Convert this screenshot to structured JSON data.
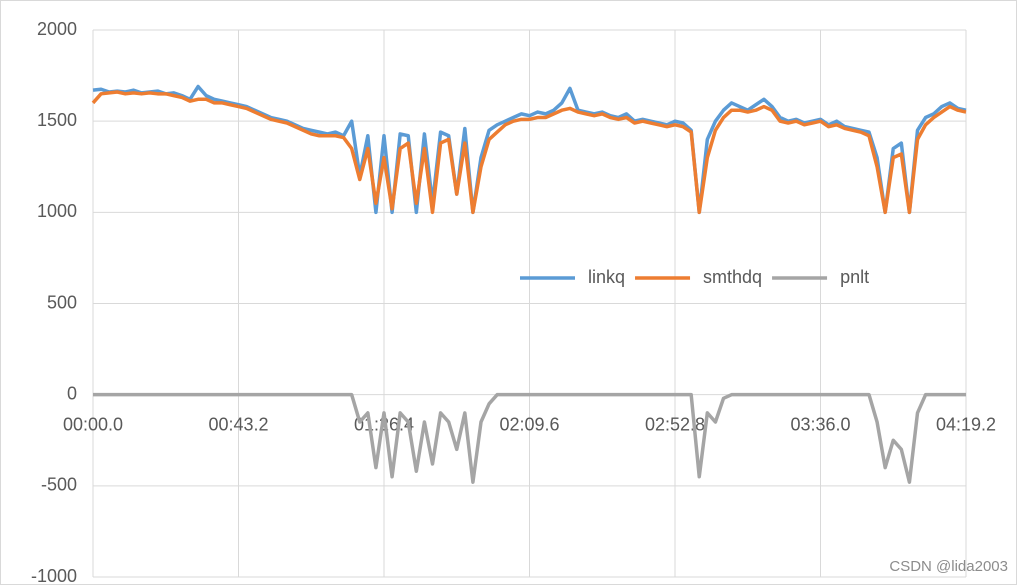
{
  "chart_data": {
    "type": "line",
    "x": [
      0,
      2.4,
      4.8,
      7.2,
      9.6,
      12,
      14.4,
      16.8,
      19.2,
      21.6,
      24,
      26.4,
      28.8,
      31.2,
      33.6,
      36,
      38.4,
      40.8,
      43.2,
      45.6,
      48,
      50.4,
      52.8,
      55.2,
      57.6,
      60,
      62.4,
      64.8,
      67.2,
      69.6,
      72,
      74.4,
      76.8,
      79.2,
      81.6,
      84,
      86.4,
      88.8,
      91.2,
      93.6,
      96,
      98.4,
      100.8,
      103.2,
      105.6,
      108,
      110.4,
      112.8,
      115.2,
      117.6,
      120,
      122.4,
      124.8,
      127.2,
      129.6,
      132,
      134.4,
      136.8,
      139.2,
      141.6,
      144,
      146.4,
      148.8,
      151.2,
      153.6,
      156,
      158.4,
      160.8,
      163.2,
      165.6,
      168,
      170.4,
      172.8,
      175.2,
      177.6,
      180,
      182.4,
      184.8,
      187.2,
      189.6,
      192,
      194.4,
      196.8,
      199.2,
      201.6,
      204,
      206.4,
      208.8,
      211.2,
      213.6,
      216,
      218.4,
      220.8,
      223.2,
      225.6,
      228,
      230.4,
      232.8,
      235.2,
      237.6,
      240,
      242.4,
      244.8,
      247.2,
      249.6,
      252,
      254.4,
      256.8,
      259.2
    ],
    "series": [
      {
        "name": "linkq",
        "color": "#5b9bd5",
        "values": [
          1670,
          1675,
          1660,
          1665,
          1660,
          1670,
          1655,
          1660,
          1665,
          1650,
          1655,
          1640,
          1620,
          1690,
          1640,
          1620,
          1610,
          1600,
          1590,
          1580,
          1560,
          1540,
          1520,
          1510,
          1500,
          1480,
          1460,
          1450,
          1440,
          1430,
          1440,
          1420,
          1500,
          1200,
          1420,
          1000,
          1420,
          1000,
          1430,
          1420,
          1000,
          1430,
          1050,
          1440,
          1420,
          1100,
          1460,
          1000,
          1300,
          1450,
          1480,
          1500,
          1520,
          1540,
          1530,
          1550,
          1540,
          1560,
          1600,
          1680,
          1560,
          1550,
          1540,
          1550,
          1530,
          1520,
          1540,
          1500,
          1510,
          1500,
          1490,
          1480,
          1500,
          1490,
          1450,
          1000,
          1400,
          1500,
          1560,
          1600,
          1580,
          1560,
          1590,
          1620,
          1580,
          1520,
          1500,
          1510,
          1490,
          1500,
          1510,
          1480,
          1500,
          1470,
          1460,
          1450,
          1440,
          1300,
          1000,
          1350,
          1380,
          1000,
          1450,
          1520,
          1540,
          1580,
          1600,
          1570,
          1560
        ]
      },
      {
        "name": "smthdq",
        "color": "#ed7d31",
        "values": [
          1600,
          1650,
          1655,
          1660,
          1650,
          1655,
          1650,
          1655,
          1650,
          1650,
          1640,
          1630,
          1610,
          1620,
          1620,
          1600,
          1600,
          1590,
          1580,
          1570,
          1550,
          1530,
          1510,
          1500,
          1490,
          1470,
          1450,
          1430,
          1420,
          1420,
          1420,
          1410,
          1350,
          1180,
          1350,
          1050,
          1300,
          1020,
          1350,
          1380,
          1050,
          1350,
          1000,
          1380,
          1400,
          1100,
          1380,
          1000,
          1250,
          1400,
          1440,
          1480,
          1500,
          1510,
          1510,
          1520,
          1520,
          1540,
          1560,
          1570,
          1550,
          1540,
          1530,
          1540,
          1520,
          1510,
          1520,
          1490,
          1500,
          1490,
          1480,
          1470,
          1480,
          1470,
          1440,
          1000,
          1300,
          1450,
          1520,
          1560,
          1560,
          1550,
          1560,
          1580,
          1560,
          1500,
          1490,
          1500,
          1480,
          1490,
          1500,
          1470,
          1480,
          1460,
          1450,
          1440,
          1420,
          1250,
          1000,
          1300,
          1320,
          1000,
          1400,
          1480,
          1520,
          1550,
          1580,
          1560,
          1550
        ]
      },
      {
        "name": "pnlt",
        "color": "#a5a5a5",
        "values": [
          0,
          0,
          0,
          0,
          0,
          0,
          0,
          0,
          0,
          0,
          0,
          0,
          0,
          0,
          0,
          0,
          0,
          0,
          0,
          0,
          0,
          0,
          0,
          0,
          0,
          0,
          0,
          0,
          0,
          0,
          0,
          0,
          0,
          -150,
          -100,
          -400,
          -100,
          -450,
          -100,
          -150,
          -420,
          -150,
          -380,
          -100,
          -150,
          -300,
          -100,
          -480,
          -150,
          -50,
          0,
          0,
          0,
          0,
          0,
          0,
          0,
          0,
          0,
          0,
          0,
          0,
          0,
          0,
          0,
          0,
          0,
          0,
          0,
          0,
          0,
          0,
          0,
          0,
          0,
          -450,
          -100,
          -150,
          -20,
          0,
          0,
          0,
          0,
          0,
          0,
          0,
          0,
          0,
          0,
          0,
          0,
          0,
          0,
          0,
          0,
          0,
          0,
          -150,
          -400,
          -250,
          -300,
          -480,
          -100,
          0,
          0,
          0,
          0,
          0,
          0
        ]
      }
    ],
    "xlim": [
      0,
      259.2
    ],
    "xticks": [
      {
        "value": 0,
        "label": "00:00.0"
      },
      {
        "value": 43.2,
        "label": "00:43.2"
      },
      {
        "value": 86.4,
        "label": "01:26.4"
      },
      {
        "value": 129.6,
        "label": "02:09.6"
      },
      {
        "value": 172.8,
        "label": "02:52.8"
      },
      {
        "value": 216,
        "label": "03:36.0"
      },
      {
        "value": 259.2,
        "label": "04:19.2"
      }
    ],
    "ylim": [
      -1000,
      2000
    ],
    "yticks": [
      -1000,
      -500,
      0,
      500,
      1000,
      1500,
      2000
    ],
    "grid": true
  },
  "watermark": "CSDN @lida2003"
}
